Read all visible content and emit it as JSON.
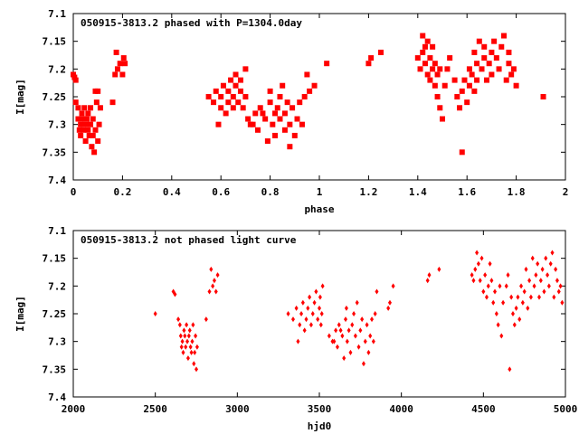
{
  "chart_data": [
    {
      "type": "scatter",
      "title": "050915-3813.2 phased with P=1304.0day",
      "xlabel": "phase",
      "ylabel": "I[mag]",
      "xlim": [
        0,
        2
      ],
      "ylim": [
        7.1,
        7.4
      ],
      "y_inverted": true,
      "xticks": [
        0,
        0.2,
        0.4,
        0.6,
        0.8,
        1,
        1.2,
        1.4,
        1.6,
        1.8,
        2
      ],
      "xtick_labels": [
        "0",
        "0.2",
        "0.4",
        "0.6",
        "0.8",
        "1",
        "1.2",
        "1.4",
        "1.6",
        "1.8",
        "2"
      ],
      "yticks": [
        7.1,
        7.15,
        7.2,
        7.25,
        7.3,
        7.35,
        7.4
      ],
      "ytick_labels": [
        "7.1",
        "7.15",
        "7.2",
        "7.25",
        "7.3",
        "7.35",
        "7.4"
      ],
      "marker_color": "#ff0000",
      "points": [
        [
          0.0,
          7.21
        ],
        [
          0.01,
          7.22
        ],
        [
          0.005,
          7.215
        ],
        [
          0.01,
          7.26
        ],
        [
          0.02,
          7.27
        ],
        [
          0.02,
          7.29
        ],
        [
          0.025,
          7.31
        ],
        [
          0.03,
          7.3
        ],
        [
          0.03,
          7.32
        ],
        [
          0.035,
          7.28
        ],
        [
          0.04,
          7.29
        ],
        [
          0.04,
          7.31
        ],
        [
          0.045,
          7.27
        ],
        [
          0.05,
          7.3
        ],
        [
          0.05,
          7.33
        ],
        [
          0.055,
          7.29
        ],
        [
          0.06,
          7.28
        ],
        [
          0.06,
          7.31
        ],
        [
          0.065,
          7.32
        ],
        [
          0.07,
          7.3
        ],
        [
          0.07,
          7.27
        ],
        [
          0.075,
          7.34
        ],
        [
          0.08,
          7.32
        ],
        [
          0.08,
          7.29
        ],
        [
          0.085,
          7.35
        ],
        [
          0.09,
          7.31
        ],
        [
          0.09,
          7.24
        ],
        [
          0.095,
          7.26
        ],
        [
          0.1,
          7.33
        ],
        [
          0.1,
          7.24
        ],
        [
          0.105,
          7.3
        ],
        [
          0.11,
          7.27
        ],
        [
          0.16,
          7.26
        ],
        [
          0.17,
          7.21
        ],
        [
          0.175,
          7.17
        ],
        [
          0.18,
          7.2
        ],
        [
          0.19,
          7.19
        ],
        [
          0.2,
          7.21
        ],
        [
          0.205,
          7.18
        ],
        [
          0.21,
          7.19
        ],
        [
          0.55,
          7.25
        ],
        [
          0.57,
          7.26
        ],
        [
          0.58,
          7.24
        ],
        [
          0.59,
          7.3
        ],
        [
          0.6,
          7.27
        ],
        [
          0.6,
          7.25
        ],
        [
          0.61,
          7.23
        ],
        [
          0.62,
          7.28
        ],
        [
          0.63,
          7.26
        ],
        [
          0.63,
          7.24
        ],
        [
          0.64,
          7.22
        ],
        [
          0.65,
          7.27
        ],
        [
          0.65,
          7.25
        ],
        [
          0.66,
          7.23
        ],
        [
          0.66,
          7.21
        ],
        [
          0.67,
          7.26
        ],
        [
          0.68,
          7.24
        ],
        [
          0.68,
          7.22
        ],
        [
          0.69,
          7.27
        ],
        [
          0.7,
          7.25
        ],
        [
          0.7,
          7.2
        ],
        [
          0.71,
          7.29
        ],
        [
          0.72,
          7.3
        ],
        [
          0.73,
          7.3
        ],
        [
          0.74,
          7.28
        ],
        [
          0.75,
          7.31
        ],
        [
          0.76,
          7.27
        ],
        [
          0.77,
          7.28
        ],
        [
          0.78,
          7.29
        ],
        [
          0.79,
          7.33
        ],
        [
          0.8,
          7.26
        ],
        [
          0.8,
          7.24
        ],
        [
          0.81,
          7.3
        ],
        [
          0.82,
          7.28
        ],
        [
          0.82,
          7.32
        ],
        [
          0.83,
          7.27
        ],
        [
          0.84,
          7.25
        ],
        [
          0.84,
          7.29
        ],
        [
          0.85,
          7.23
        ],
        [
          0.86,
          7.31
        ],
        [
          0.86,
          7.28
        ],
        [
          0.87,
          7.26
        ],
        [
          0.88,
          7.34
        ],
        [
          0.88,
          7.3
        ],
        [
          0.89,
          7.27
        ],
        [
          0.9,
          7.32
        ],
        [
          0.91,
          7.29
        ],
        [
          0.92,
          7.26
        ],
        [
          0.93,
          7.3
        ],
        [
          0.94,
          7.25
        ],
        [
          0.95,
          7.21
        ],
        [
          0.96,
          7.24
        ],
        [
          0.98,
          7.23
        ],
        [
          1.03,
          7.19
        ],
        [
          1.2,
          7.19
        ],
        [
          1.21,
          7.18
        ],
        [
          1.25,
          7.17
        ],
        [
          1.4,
          7.18
        ],
        [
          1.41,
          7.2
        ],
        [
          1.42,
          7.17
        ],
        [
          1.42,
          7.14
        ],
        [
          1.43,
          7.16
        ],
        [
          1.43,
          7.19
        ],
        [
          1.44,
          7.15
        ],
        [
          1.44,
          7.21
        ],
        [
          1.45,
          7.18
        ],
        [
          1.45,
          7.22
        ],
        [
          1.46,
          7.2
        ],
        [
          1.46,
          7.16
        ],
        [
          1.47,
          7.19
        ],
        [
          1.47,
          7.23
        ],
        [
          1.48,
          7.21
        ],
        [
          1.48,
          7.25
        ],
        [
          1.49,
          7.27
        ],
        [
          1.49,
          7.2
        ],
        [
          1.5,
          7.29
        ],
        [
          1.51,
          7.23
        ],
        [
          1.52,
          7.2
        ],
        [
          1.53,
          7.18
        ],
        [
          1.55,
          7.22
        ],
        [
          1.56,
          7.25
        ],
        [
          1.57,
          7.27
        ],
        [
          1.58,
          7.35
        ],
        [
          1.58,
          7.24
        ],
        [
          1.59,
          7.22
        ],
        [
          1.6,
          7.26
        ],
        [
          1.61,
          7.2
        ],
        [
          1.61,
          7.23
        ],
        [
          1.62,
          7.21
        ],
        [
          1.63,
          7.17
        ],
        [
          1.63,
          7.24
        ],
        [
          1.64,
          7.19
        ],
        [
          1.64,
          7.22
        ],
        [
          1.65,
          7.15
        ],
        [
          1.66,
          7.2
        ],
        [
          1.67,
          7.18
        ],
        [
          1.67,
          7.16
        ],
        [
          1.68,
          7.22
        ],
        [
          1.69,
          7.19
        ],
        [
          1.7,
          7.17
        ],
        [
          1.7,
          7.21
        ],
        [
          1.71,
          7.15
        ],
        [
          1.72,
          7.18
        ],
        [
          1.73,
          7.2
        ],
        [
          1.74,
          7.16
        ],
        [
          1.75,
          7.14
        ],
        [
          1.76,
          7.22
        ],
        [
          1.77,
          7.17
        ],
        [
          1.77,
          7.19
        ],
        [
          1.78,
          7.21
        ],
        [
          1.79,
          7.2
        ],
        [
          1.8,
          7.23
        ],
        [
          1.91,
          7.25
        ]
      ]
    },
    {
      "type": "scatter",
      "title": "050915-3813.2 not phased light curve",
      "xlabel": "hjd0",
      "ylabel": "I[mag]",
      "xlim": [
        2000,
        5000
      ],
      "ylim": [
        7.1,
        7.4
      ],
      "y_inverted": true,
      "xticks": [
        2000,
        2500,
        3000,
        3500,
        4000,
        4500,
        5000
      ],
      "xtick_labels": [
        "2000",
        "2500",
        "3000",
        "3500",
        "4000",
        "4500",
        "5000"
      ],
      "yticks": [
        7.1,
        7.15,
        7.2,
        7.25,
        7.3,
        7.35,
        7.4
      ],
      "ytick_labels": [
        "7.1",
        "7.15",
        "7.2",
        "7.25",
        "7.3",
        "7.35",
        "7.4"
      ],
      "marker_color": "#ff0000",
      "points": [
        [
          2500,
          7.25
        ],
        [
          2610,
          7.21
        ],
        [
          2620,
          7.215
        ],
        [
          2640,
          7.26
        ],
        [
          2650,
          7.27
        ],
        [
          2655,
          7.29
        ],
        [
          2660,
          7.31
        ],
        [
          2665,
          7.3
        ],
        [
          2670,
          7.32
        ],
        [
          2675,
          7.28
        ],
        [
          2680,
          7.29
        ],
        [
          2685,
          7.31
        ],
        [
          2690,
          7.27
        ],
        [
          2695,
          7.3
        ],
        [
          2700,
          7.33
        ],
        [
          2705,
          7.29
        ],
        [
          2710,
          7.28
        ],
        [
          2715,
          7.31
        ],
        [
          2720,
          7.32
        ],
        [
          2725,
          7.3
        ],
        [
          2730,
          7.27
        ],
        [
          2735,
          7.34
        ],
        [
          2740,
          7.32
        ],
        [
          2745,
          7.29
        ],
        [
          2750,
          7.35
        ],
        [
          2755,
          7.31
        ],
        [
          2810,
          7.26
        ],
        [
          2830,
          7.21
        ],
        [
          2840,
          7.17
        ],
        [
          2850,
          7.2
        ],
        [
          2860,
          7.19
        ],
        [
          2870,
          7.21
        ],
        [
          2880,
          7.18
        ],
        [
          3310,
          7.25
        ],
        [
          3340,
          7.26
        ],
        [
          3360,
          7.24
        ],
        [
          3370,
          7.3
        ],
        [
          3380,
          7.27
        ],
        [
          3390,
          7.25
        ],
        [
          3400,
          7.23
        ],
        [
          3410,
          7.28
        ],
        [
          3420,
          7.26
        ],
        [
          3430,
          7.24
        ],
        [
          3440,
          7.22
        ],
        [
          3450,
          7.27
        ],
        [
          3460,
          7.25
        ],
        [
          3470,
          7.23
        ],
        [
          3480,
          7.21
        ],
        [
          3490,
          7.26
        ],
        [
          3500,
          7.24
        ],
        [
          3505,
          7.22
        ],
        [
          3510,
          7.27
        ],
        [
          3515,
          7.25
        ],
        [
          3520,
          7.2
        ],
        [
          3560,
          7.29
        ],
        [
          3580,
          7.3
        ],
        [
          3590,
          7.3
        ],
        [
          3600,
          7.28
        ],
        [
          3610,
          7.31
        ],
        [
          3620,
          7.27
        ],
        [
          3630,
          7.28
        ],
        [
          3640,
          7.29
        ],
        [
          3650,
          7.33
        ],
        [
          3660,
          7.26
        ],
        [
          3665,
          7.24
        ],
        [
          3670,
          7.3
        ],
        [
          3680,
          7.28
        ],
        [
          3690,
          7.32
        ],
        [
          3700,
          7.27
        ],
        [
          3710,
          7.25
        ],
        [
          3720,
          7.29
        ],
        [
          3730,
          7.23
        ],
        [
          3740,
          7.31
        ],
        [
          3750,
          7.28
        ],
        [
          3760,
          7.26
        ],
        [
          3770,
          7.34
        ],
        [
          3780,
          7.3
        ],
        [
          3790,
          7.27
        ],
        [
          3800,
          7.32
        ],
        [
          3810,
          7.29
        ],
        [
          3820,
          7.26
        ],
        [
          3830,
          7.3
        ],
        [
          3840,
          7.25
        ],
        [
          3850,
          7.21
        ],
        [
          3920,
          7.24
        ],
        [
          3930,
          7.23
        ],
        [
          3950,
          7.2
        ],
        [
          4160,
          7.19
        ],
        [
          4170,
          7.18
        ],
        [
          4230,
          7.17
        ],
        [
          4430,
          7.18
        ],
        [
          4440,
          7.19
        ],
        [
          4450,
          7.17
        ],
        [
          4460,
          7.14
        ],
        [
          4470,
          7.16
        ],
        [
          4480,
          7.19
        ],
        [
          4490,
          7.15
        ],
        [
          4500,
          7.21
        ],
        [
          4510,
          7.18
        ],
        [
          4520,
          7.22
        ],
        [
          4530,
          7.2
        ],
        [
          4540,
          7.16
        ],
        [
          4550,
          7.19
        ],
        [
          4560,
          7.23
        ],
        [
          4570,
          7.21
        ],
        [
          4580,
          7.25
        ],
        [
          4590,
          7.27
        ],
        [
          4600,
          7.2
        ],
        [
          4610,
          7.29
        ],
        [
          4620,
          7.23
        ],
        [
          4640,
          7.2
        ],
        [
          4650,
          7.18
        ],
        [
          4660,
          7.35
        ],
        [
          4670,
          7.22
        ],
        [
          4680,
          7.25
        ],
        [
          4690,
          7.27
        ],
        [
          4700,
          7.24
        ],
        [
          4710,
          7.22
        ],
        [
          4720,
          7.26
        ],
        [
          4730,
          7.2
        ],
        [
          4740,
          7.23
        ],
        [
          4750,
          7.21
        ],
        [
          4760,
          7.17
        ],
        [
          4770,
          7.24
        ],
        [
          4780,
          7.19
        ],
        [
          4790,
          7.22
        ],
        [
          4800,
          7.15
        ],
        [
          4810,
          7.2
        ],
        [
          4820,
          7.18
        ],
        [
          4830,
          7.16
        ],
        [
          4840,
          7.22
        ],
        [
          4850,
          7.19
        ],
        [
          4860,
          7.17
        ],
        [
          4870,
          7.21
        ],
        [
          4880,
          7.15
        ],
        [
          4890,
          7.18
        ],
        [
          4900,
          7.2
        ],
        [
          4910,
          7.16
        ],
        [
          4920,
          7.14
        ],
        [
          4930,
          7.22
        ],
        [
          4940,
          7.17
        ],
        [
          4950,
          7.19
        ],
        [
          4960,
          7.21
        ],
        [
          4970,
          7.2
        ],
        [
          4980,
          7.23
        ]
      ]
    }
  ]
}
